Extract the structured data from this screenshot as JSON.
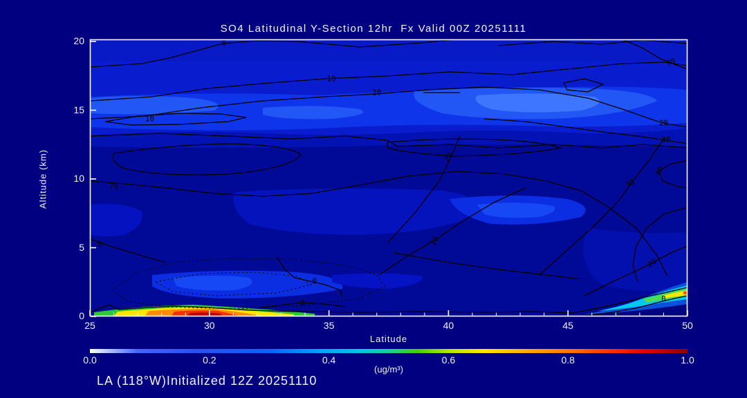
{
  "title": "SO4 Latitudinal Y-Section 12hr  Fx Valid 00Z 20251111",
  "footer": "LA (118°W)Initialized 12Z 20251110",
  "colors": {
    "background": "#000080",
    "text": "#f2f0ff",
    "contour_line": "#000000",
    "plot_base_fill": "#000a96",
    "surface_peak_left": "#c00000",
    "surface_peak_right": "#ffe600"
  },
  "chart_data": {
    "type": "heatmap",
    "representation": "filled contour latitudinal cross-section with overlaid line contours",
    "title": "SO4 Latitudinal Y-Section 12hr  Fx Valid 00Z 20251111",
    "xlabel": "Latitude",
    "ylabel": "Altitude (km)",
    "xlim": [
      25,
      50
    ],
    "ylim": [
      0,
      20
    ],
    "xticks": [
      25,
      30,
      35,
      40,
      45,
      50
    ],
    "xtick_minor_step": 1,
    "yticks": [
      0,
      5,
      10,
      15,
      20
    ],
    "grid": false,
    "contour_levels_labeled": [
      0,
      10,
      20,
      30,
      40,
      70
    ],
    "contour_labels": [
      {
        "value": "0",
        "lat": 30.6,
        "alt": 19.9,
        "angle": 0
      },
      {
        "value": "10",
        "lat": 35.1,
        "alt": 17.3,
        "angle": 0
      },
      {
        "value": "20",
        "lat": 37.0,
        "alt": 16.3,
        "angle": 0
      },
      {
        "value": "10",
        "lat": 27.5,
        "alt": 14.4,
        "angle": 0
      },
      {
        "value": "70",
        "lat": 49.3,
        "alt": 18.5,
        "angle": -25
      },
      {
        "value": "20",
        "lat": 49.0,
        "alt": 14.1,
        "angle": 0
      },
      {
        "value": "30",
        "lat": 49.1,
        "alt": 12.9,
        "angle": 0
      },
      {
        "value": "70",
        "lat": 26.0,
        "alt": 9.5,
        "angle": 0
      },
      {
        "value": "0",
        "lat": 25.4,
        "alt": 5.3,
        "angle": -30
      },
      {
        "value": "20",
        "lat": 40.0,
        "alt": 11.6,
        "angle": -50
      },
      {
        "value": "40",
        "lat": 48.8,
        "alt": 10.6,
        "angle": -65
      },
      {
        "value": "30",
        "lat": 47.6,
        "alt": 9.7,
        "angle": -25
      },
      {
        "value": "10",
        "lat": 39.4,
        "alt": 5.5,
        "angle": -55
      },
      {
        "value": "20",
        "lat": 48.5,
        "alt": 3.9,
        "angle": -35
      },
      {
        "value": "0",
        "lat": 34.4,
        "alt": 2.6,
        "angle": 0
      },
      {
        "value": "0",
        "lat": 33.9,
        "alt": 1.0,
        "angle": 0
      },
      {
        "value": "0",
        "lat": 49.0,
        "alt": 1.3,
        "angle": 0
      }
    ],
    "colorbar": {
      "min": 0.0,
      "max": 1.0,
      "ticks": [
        "0.0",
        "0.2",
        "0.4",
        "0.6",
        "0.8",
        "1.0"
      ],
      "units": "(ug/m³)",
      "gradient": [
        {
          "pos": 0,
          "color": "#ffffff"
        },
        {
          "pos": 3,
          "color": "#b4c8ff"
        },
        {
          "pos": 8,
          "color": "#4664ff"
        },
        {
          "pos": 18,
          "color": "#2850f0"
        },
        {
          "pos": 30,
          "color": "#0a64ff"
        },
        {
          "pos": 38,
          "color": "#00a0ff"
        },
        {
          "pos": 45,
          "color": "#00c8e6"
        },
        {
          "pos": 50,
          "color": "#14d29b"
        },
        {
          "pos": 55,
          "color": "#46d200"
        },
        {
          "pos": 60,
          "color": "#b4e600"
        },
        {
          "pos": 66,
          "color": "#ffe600"
        },
        {
          "pos": 72,
          "color": "#ffb400"
        },
        {
          "pos": 80,
          "color": "#ff7800"
        },
        {
          "pos": 87,
          "color": "#ff3200"
        },
        {
          "pos": 93,
          "color": "#e60000"
        },
        {
          "pos": 100,
          "color": "#900000"
        }
      ]
    }
  }
}
